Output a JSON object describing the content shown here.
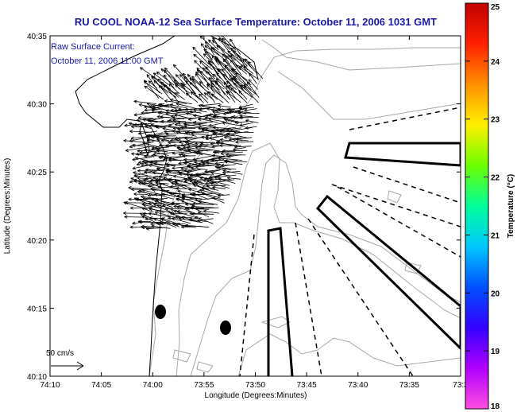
{
  "title": "RU COOL  NOAA-12  Sea Surface Temperature:  October 11, 2006 1031 GMT",
  "annotation_lines": [
    "Raw Surface Current:",
    "October 11, 2006 11:00 GMT"
  ],
  "scale_label": "50 cm/s",
  "xlabel": "Longitude (Degrees:Minutes)",
  "ylabel": "Latitude (Degrees:Minutes)",
  "x_ticks": [
    "74:10",
    "74:05",
    "74:00",
    "73:55",
    "73:50",
    "73:45",
    "73:40",
    "73:35",
    "73:3"
  ],
  "y_ticks": [
    "40:35",
    "40:30",
    "40:25",
    "40:20",
    "40:15",
    "40:10"
  ],
  "colorbar": {
    "label": "Temperature (°C)",
    "ticks": [
      "25",
      "24",
      "23",
      "22",
      "21",
      "20",
      "19",
      "18"
    ],
    "min": 18,
    "max": 25,
    "colors": [
      "#ff4de0",
      "#b000ff",
      "#3300ff",
      "#0050ff",
      "#00c8ff",
      "#00ff9a",
      "#6cff00",
      "#fff000",
      "#ff9000",
      "#ff2000",
      "#c00000"
    ]
  },
  "chart_data": {
    "type": "map",
    "title": "RU COOL  NOAA-12  Sea Surface Temperature:  October 11, 2006 1031 GMT",
    "xlabel": "Longitude (Degrees:Minutes)",
    "ylabel": "Latitude (Degrees:Minutes)",
    "xlim": [
      -74.1667,
      -73.55
    ],
    "ylim": [
      40.1667,
      40.5833
    ],
    "markers": [
      {
        "lon": -73.98,
        "lat": 40.245,
        "shape": "filled-ellipse"
      },
      {
        "lon": -73.905,
        "lat": 40.225,
        "shape": "filled-ellipse"
      }
    ],
    "current_vectors": {
      "time": "October 11, 2006 11:00 GMT",
      "scale_cm_s": 50,
      "region": {
        "lon": [
          -74.0,
          -73.86
        ],
        "lat": [
          40.36,
          40.57
        ]
      },
      "predominant_direction": "westward"
    }
  }
}
